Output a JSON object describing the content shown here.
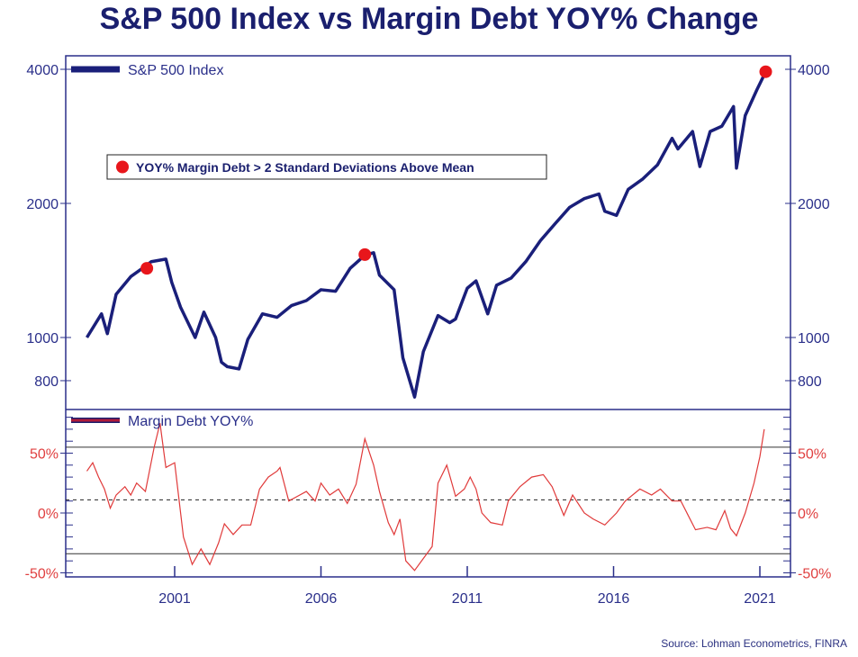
{
  "chart_data": [
    {
      "type": "line",
      "title": "S&P 500 Index vs Margin Debt YOY% Change",
      "yscale": "log",
      "ylim": [
        740,
        4200
      ],
      "yticks": [
        "4000",
        "2000",
        "1000",
        "800"
      ],
      "ytick_values": [
        4000,
        2000,
        1000,
        800
      ],
      "series": [
        {
          "name": "S&P 500 Index",
          "color": "#1a1f7a",
          "x": [
            1998.0,
            1998.5,
            1998.7,
            1999.0,
            1999.5,
            1999.9,
            2000.2,
            2000.7,
            2000.9,
            2001.2,
            2001.7,
            2002.0,
            2002.4,
            2002.6,
            2002.8,
            2003.2,
            2003.5,
            2004.0,
            2004.5,
            2005.0,
            2005.5,
            2006.0,
            2006.5,
            2007.0,
            2007.5,
            2007.8,
            2008.0,
            2008.5,
            2008.8,
            2009.2,
            2009.5,
            2010.0,
            2010.4,
            2010.6,
            2011.0,
            2011.3,
            2011.7,
            2012.0,
            2012.5,
            2013.0,
            2013.5,
            2014.0,
            2014.5,
            2015.0,
            2015.5,
            2015.7,
            2016.1,
            2016.5,
            2017.0,
            2017.5,
            2018.0,
            2018.2,
            2018.7,
            2018.95,
            2019.3,
            2019.7,
            2020.1,
            2020.2,
            2020.5,
            2020.9,
            2021.2
          ],
          "y": [
            1000,
            1130,
            1020,
            1250,
            1370,
            1430,
            1480,
            1500,
            1330,
            1170,
            1000,
            1140,
            1000,
            880,
            860,
            850,
            990,
            1130,
            1110,
            1180,
            1210,
            1280,
            1270,
            1430,
            1530,
            1550,
            1380,
            1280,
            900,
            735,
            930,
            1120,
            1080,
            1100,
            1290,
            1340,
            1130,
            1310,
            1360,
            1480,
            1650,
            1800,
            1960,
            2050,
            2100,
            1920,
            1880,
            2150,
            2270,
            2440,
            2800,
            2650,
            2900,
            2420,
            2900,
            2980,
            3300,
            2400,
            3150,
            3600,
            3950
          ]
        }
      ],
      "markers": {
        "name": "YOY% Margin Debt > 2 Standard Deviations Above Mean",
        "color": "#e8161b",
        "x": [
          2000.05,
          2007.5,
          2021.2
        ],
        "y": [
          1430,
          1535,
          3950
        ]
      }
    },
    {
      "type": "line",
      "ylim": [
        -55,
        80
      ],
      "yticks": [
        "50%",
        "0%",
        "-50%"
      ],
      "ytick_values": [
        50,
        0,
        -50
      ],
      "xticks": [
        "2001",
        "2006",
        "2011",
        "2016",
        "2021"
      ],
      "xtick_values": [
        2001,
        2006,
        2011,
        2016,
        2021
      ],
      "reference_lines": {
        "upper": 55,
        "mean": 11,
        "lower": -34
      },
      "series": [
        {
          "name": "Margin Debt YOY%",
          "color": "#e03a3a",
          "x": [
            1998.0,
            1998.2,
            1998.4,
            1998.6,
            1998.8,
            1999.0,
            1999.3,
            1999.5,
            1999.7,
            2000.0,
            2000.3,
            2000.5,
            2000.7,
            2001.0,
            2001.3,
            2001.6,
            2001.9,
            2002.2,
            2002.5,
            2002.7,
            2003.0,
            2003.3,
            2003.6,
            2003.9,
            2004.2,
            2004.5,
            2004.6,
            2004.9,
            2005.2,
            2005.5,
            2005.8,
            2006.0,
            2006.3,
            2006.6,
            2006.9,
            2007.2,
            2007.5,
            2007.8,
            2008.0,
            2008.3,
            2008.5,
            2008.7,
            2008.9,
            2009.2,
            2009.5,
            2009.8,
            2010.0,
            2010.3,
            2010.6,
            2010.9,
            2011.1,
            2011.3,
            2011.5,
            2011.8,
            2012.2,
            2012.4,
            2012.8,
            2013.2,
            2013.6,
            2013.9,
            2014.3,
            2014.6,
            2015.0,
            2015.3,
            2015.7,
            2016.1,
            2016.4,
            2016.9,
            2017.3,
            2017.6,
            2018.0,
            2018.3,
            2018.8,
            2019.2,
            2019.5,
            2019.8,
            2020.0,
            2020.2,
            2020.5,
            2020.8,
            2021.0,
            2021.15
          ],
          "y": [
            35,
            42,
            30,
            20,
            4,
            15,
            22,
            15,
            25,
            18,
            55,
            75,
            38,
            42,
            -20,
            -43,
            -30,
            -43,
            -25,
            -9,
            -18,
            -10,
            -10,
            20,
            30,
            35,
            38,
            10,
            14,
            18,
            10,
            25,
            15,
            20,
            8,
            24,
            62,
            40,
            18,
            -8,
            -18,
            -5,
            -40,
            -48,
            -38,
            -28,
            25,
            40,
            14,
            20,
            30,
            20,
            0,
            -8,
            -10,
            10,
            22,
            30,
            32,
            22,
            -2,
            15,
            0,
            -5,
            -10,
            0,
            10,
            20,
            15,
            20,
            10,
            10,
            -14,
            -12,
            -14,
            2,
            -13,
            -19,
            0,
            25,
            47,
            70
          ]
        }
      ]
    }
  ],
  "source": "Source: Lohman Econometrics, FINRA"
}
